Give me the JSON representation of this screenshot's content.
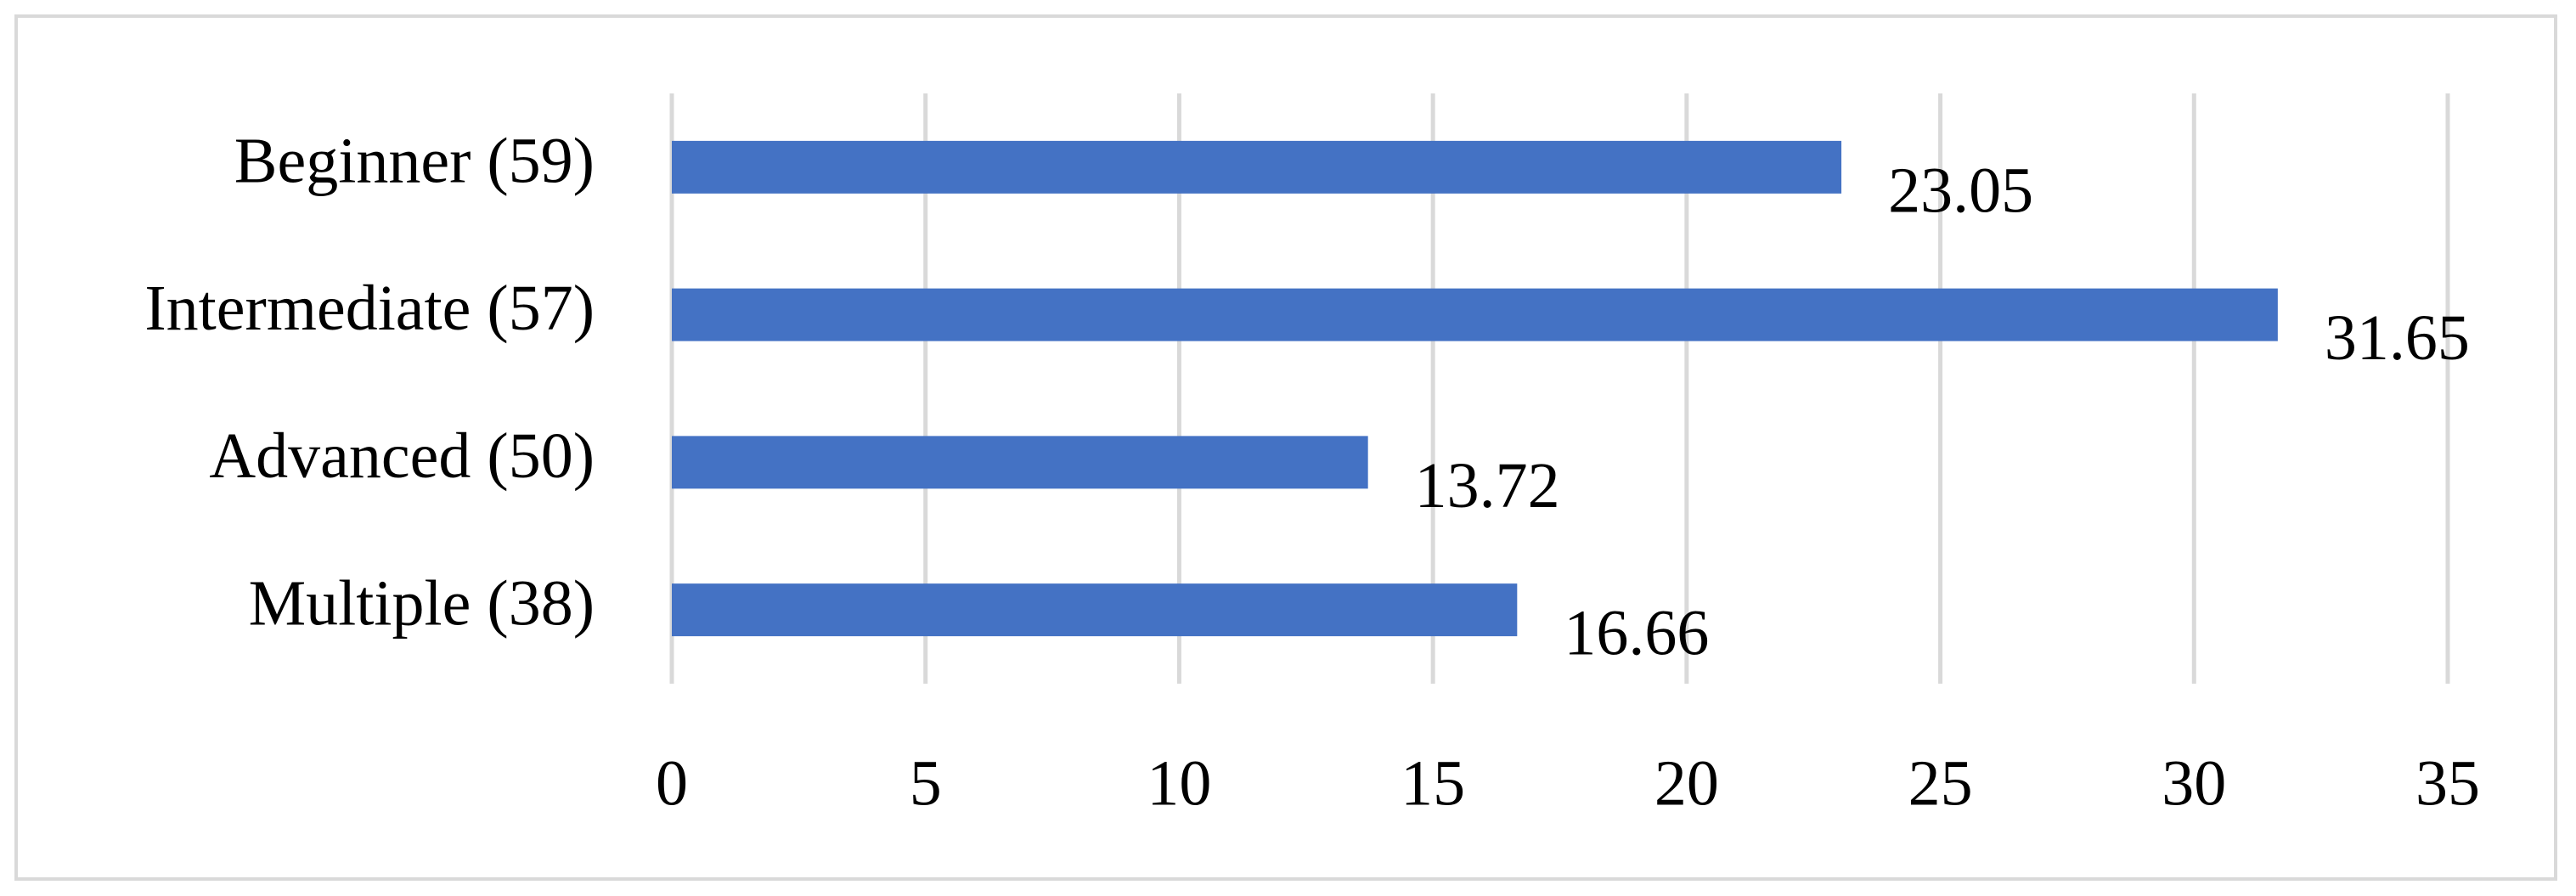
{
  "chart_data": {
    "type": "bar",
    "orientation": "horizontal",
    "categories": [
      "Beginner (59)",
      "Intermediate (57)",
      "Advanced (50)",
      "Multiple (38)"
    ],
    "values": [
      23.05,
      31.65,
      13.72,
      16.66
    ],
    "color": "#4472c4",
    "xlim": [
      0,
      35
    ],
    "xticks": [
      0,
      5,
      10,
      15,
      20,
      25,
      30,
      35
    ],
    "grid": true
  }
}
